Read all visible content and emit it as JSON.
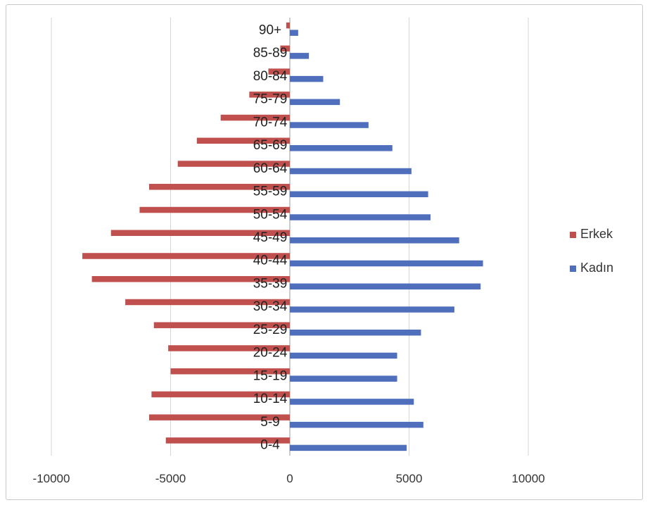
{
  "chart_data": {
    "type": "bar",
    "orientation": "horizontal",
    "title": "",
    "xlabel": "",
    "ylabel": "",
    "categories": [
      "0-4",
      "5-9",
      "10-14",
      "15-19",
      "20-24",
      "25-29",
      "30-34",
      "35-39",
      "40-44",
      "45-49",
      "50-54",
      "55-59",
      "60-64",
      "65-69",
      "70-74",
      "75-79",
      "80-84",
      "85-89",
      "90+"
    ],
    "series": [
      {
        "name": "Erkek",
        "color": "#c0504d",
        "values": [
          -5200,
          -5900,
          -5800,
          -5000,
          -5100,
          -5700,
          -6900,
          -8300,
          -8700,
          -7500,
          -6300,
          -5900,
          -4700,
          -3900,
          -2900,
          -1700,
          -900,
          -400,
          -150
        ]
      },
      {
        "name": "Kadın",
        "color": "#4f6fbd",
        "values": [
          4900,
          5600,
          5200,
          4500,
          4500,
          5500,
          6900,
          8000,
          8100,
          7100,
          5900,
          5800,
          5100,
          4300,
          3300,
          2100,
          1400,
          800,
          350
        ]
      }
    ],
    "xlim": [
      -10000,
      10000
    ],
    "xticks": [
      "-10000",
      "-5000",
      "0",
      "5000",
      "10000"
    ],
    "grid": "vertical",
    "legend_position": "right"
  }
}
